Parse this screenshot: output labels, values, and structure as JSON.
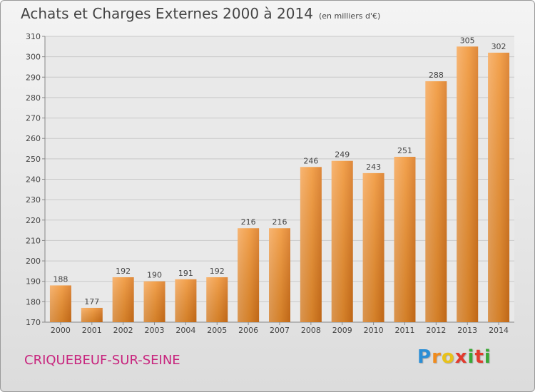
{
  "chart_data": {
    "type": "bar",
    "title": "Achats et Charges Externes 2000 à 2014",
    "subtitle": "(en milliers d'€)",
    "categories": [
      "2000",
      "2001",
      "2002",
      "2003",
      "2004",
      "2005",
      "2006",
      "2007",
      "2008",
      "2009",
      "2010",
      "2011",
      "2012",
      "2013",
      "2014"
    ],
    "values": [
      188,
      177,
      192,
      190,
      191,
      192,
      216,
      216,
      246,
      249,
      243,
      251,
      288,
      305,
      302
    ],
    "ylim": [
      170,
      310
    ],
    "yticks": [
      170,
      180,
      190,
      200,
      210,
      220,
      230,
      240,
      250,
      260,
      270,
      280,
      290,
      300,
      310
    ],
    "grid": true,
    "bar_color": "#f0912e"
  },
  "commune": "CRIQUEBEUF-SUR-SEINE",
  "brand": {
    "letters": [
      "P",
      "r",
      "o",
      "x",
      "i",
      "t",
      "i"
    ],
    "colors": [
      "#2a8ed6",
      "#f08b1d",
      "#e8c21a",
      "#e23a2d",
      "#3aa836",
      "#e23a2d",
      "#3aa836"
    ]
  }
}
